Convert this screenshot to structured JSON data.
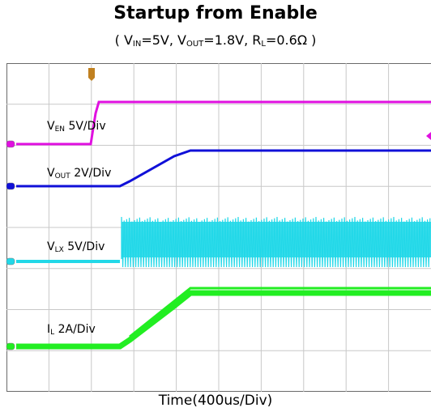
{
  "chart_data": {
    "type": "line",
    "title": "Startup from Enable",
    "subtitle": {
      "open": "( ",
      "vin_sym": "V",
      "vin_sub": "IN",
      "vin_val": "=5V, ",
      "vout_sym": "V",
      "vout_sub": "OUT",
      "vout_val": "=1.8V, ",
      "rl_sym": "R",
      "rl_sub": "L",
      "rl_val": "=0.6Ω",
      "close": " )"
    },
    "xlabel": "Time(400us/Div)",
    "grid": true,
    "divisions": {
      "x": 10,
      "y": 8
    },
    "series": [
      {
        "name": "V_EN",
        "label_sym": "V",
        "label_sub": "EN",
        "label_scale": " 5V/Div",
        "color": "#e010e0"
      },
      {
        "name": "V_OUT",
        "label_sym": "V",
        "label_sub": "OUT",
        "label_scale": " 2V/Div",
        "color": "#1010d8"
      },
      {
        "name": "V_LX",
        "label_sym": "V",
        "label_sub": "LX",
        "label_scale": " 5V/Div",
        "color": "#22d8e8"
      },
      {
        "name": "I_L",
        "label_sym": "I",
        "label_sub": "L",
        "label_scale": " 2A/Div",
        "color": "#22ee22"
      }
    ]
  }
}
